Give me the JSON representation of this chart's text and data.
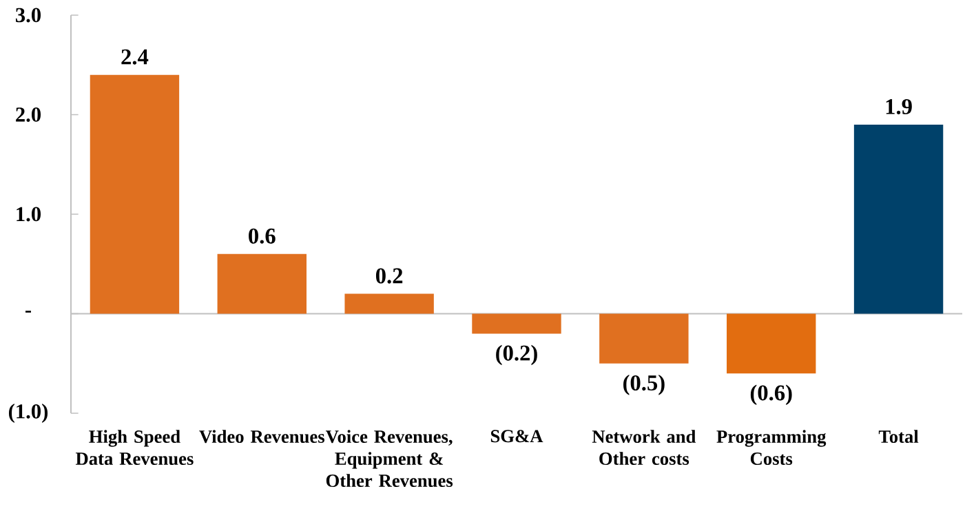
{
  "chart_data": {
    "type": "bar",
    "categories": [
      "High Speed Data Revenues",
      "Video Revenues",
      "Voice Revenues, Equipment & Other Revenues",
      "SG&A",
      "Network and Other costs",
      "Programming Costs",
      "Total"
    ],
    "values": [
      2.4,
      0.6,
      0.2,
      -0.2,
      -0.5,
      -0.6,
      1.9
    ],
    "colors": [
      "#e07020",
      "#e07020",
      "#e07020",
      "#e07020",
      "#e07020",
      "#e26d10",
      "#00416a"
    ],
    "value_labels": [
      "2.4",
      "0.6",
      "0.2",
      "(0.2)",
      "(0.5)",
      "(0.6)",
      "1.9"
    ],
    "ylim": [
      -1,
      3
    ],
    "yticks": [
      {
        "value": -1,
        "label": "(1.0)"
      },
      {
        "value": 0,
        "label": "-"
      },
      {
        "value": 1,
        "label": "1.0"
      },
      {
        "value": 2,
        "label": "2.0"
      },
      {
        "value": 3,
        "label": "3.0"
      }
    ]
  }
}
